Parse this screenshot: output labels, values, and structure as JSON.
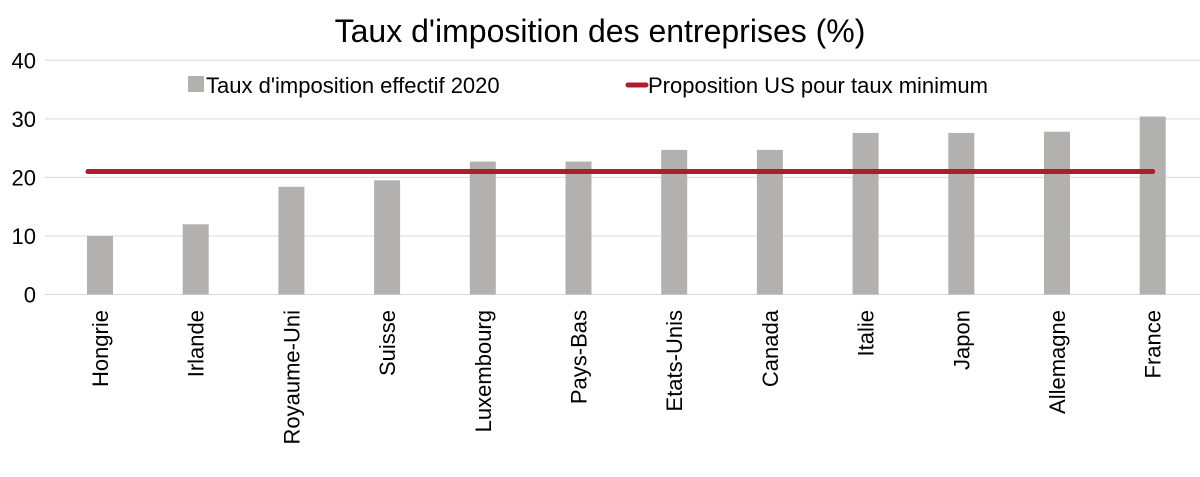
{
  "chart_data": {
    "type": "bar",
    "title": "Taux d'imposition des entreprises (%)",
    "xlabel": "",
    "ylabel": "",
    "ylim": [
      0,
      40
    ],
    "yticks": [
      0,
      10,
      20,
      30,
      40
    ],
    "grid": true,
    "legend_placement": "top",
    "categories": [
      "Hongrie",
      "Irlande",
      "Royaume-Uni",
      "Suisse",
      "Luxembourg",
      "Pays-Bas",
      "Etats-Unis",
      "Canada",
      "Italie",
      "Japon",
      "Allemagne",
      "France"
    ],
    "series": [
      {
        "name": "Taux d'imposition effectif 2020",
        "type": "bar",
        "color": "#b3b0b0",
        "values": [
          10.0,
          12.0,
          18.4,
          19.5,
          22.7,
          22.7,
          24.7,
          24.7,
          27.6,
          27.6,
          27.8,
          30.4
        ]
      },
      {
        "name": "Proposition US pour taux minimum",
        "type": "line",
        "color": "#b01c2e",
        "values": [
          21,
          21,
          21,
          21,
          21,
          21,
          21,
          21,
          21,
          21,
          21,
          21
        ]
      }
    ]
  }
}
